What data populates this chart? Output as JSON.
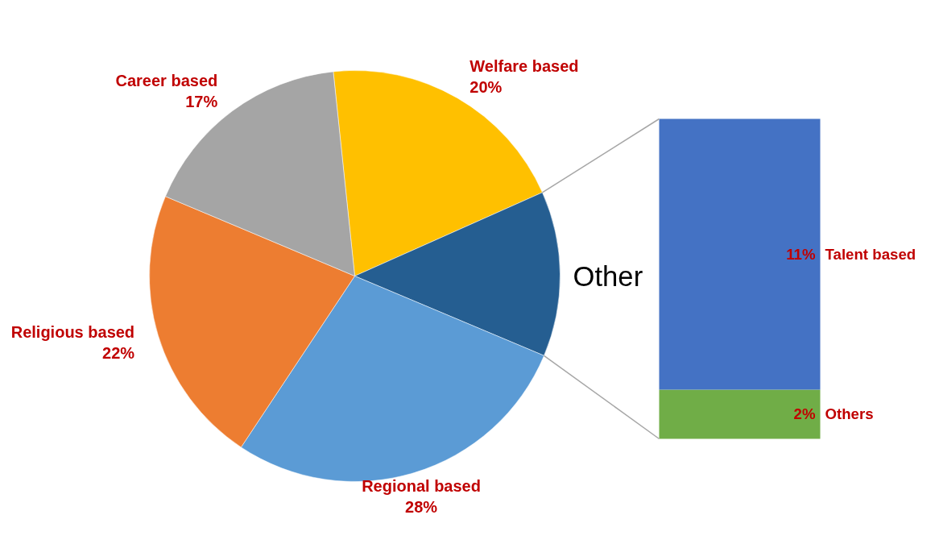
{
  "chart_data": [
    {
      "type": "pie",
      "categories": [
        "Welfare based",
        "Other",
        "Regional based",
        "Religious based",
        "Career based"
      ],
      "values": [
        20,
        13,
        28,
        22,
        17
      ],
      "colors": [
        "#ffc000",
        "#255e91",
        "#5b9bd5",
        "#ed7d31",
        "#a5a5a5"
      ],
      "value_labels": [
        "20%",
        null,
        "28%",
        "22%",
        "17%"
      ]
    },
    {
      "type": "bar",
      "stacked": true,
      "categories": [
        null
      ],
      "series": [
        {
          "name": "Others",
          "color": "#70ad47",
          "values": [
            2
          ],
          "value_labels": [
            "2%"
          ]
        },
        {
          "name": "Talent based",
          "color": "#4472c4",
          "values": [
            11
          ],
          "value_labels": [
            "11%"
          ]
        }
      ]
    }
  ]
}
